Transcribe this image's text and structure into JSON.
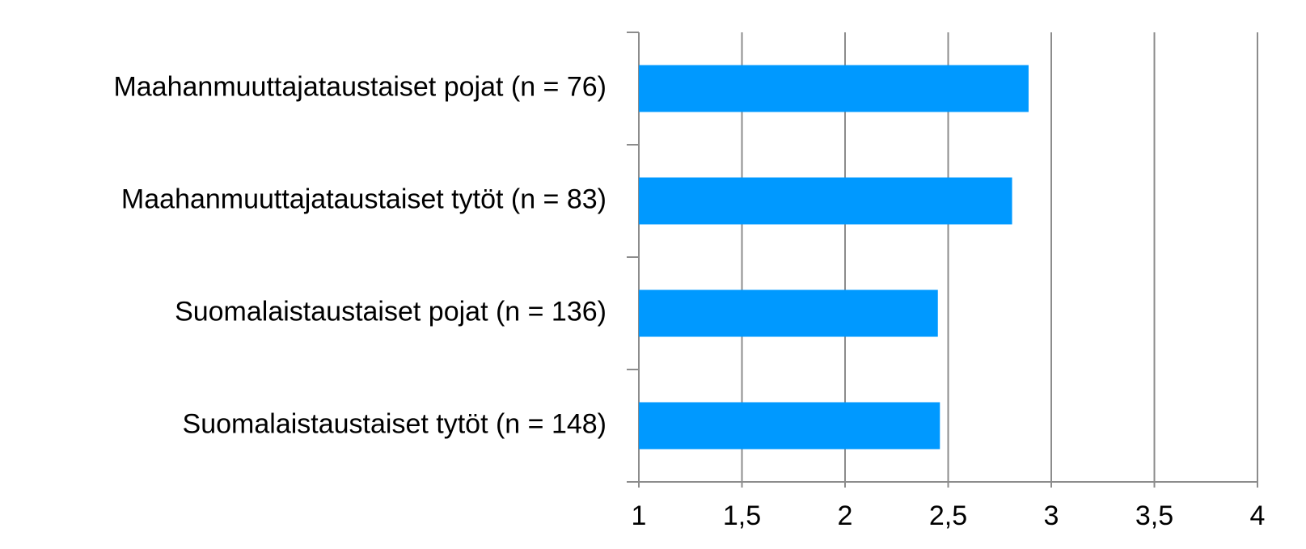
{
  "chart_data": {
    "type": "barh",
    "categories": [
      "Maahanmuuttajataustaiset pojat (n = 76)",
      "Maahanmuuttajataustaiset tytöt (n = 83)",
      "Suomalaistaustaiset pojat (n = 136)",
      "Suomalaistaustaiset tytöt (n = 148)"
    ],
    "values": [
      2.89,
      2.81,
      2.45,
      2.46
    ],
    "color": "#0099ff",
    "xlim": [
      1,
      4
    ],
    "xticks": [
      1,
      {
        "value": 1.5,
        "label": "1,5"
      },
      2,
      {
        "value": 2.5,
        "label": "2,5"
      },
      3,
      {
        "value": 3.5,
        "label": "3,5"
      },
      4
    ],
    "grid": true
  }
}
